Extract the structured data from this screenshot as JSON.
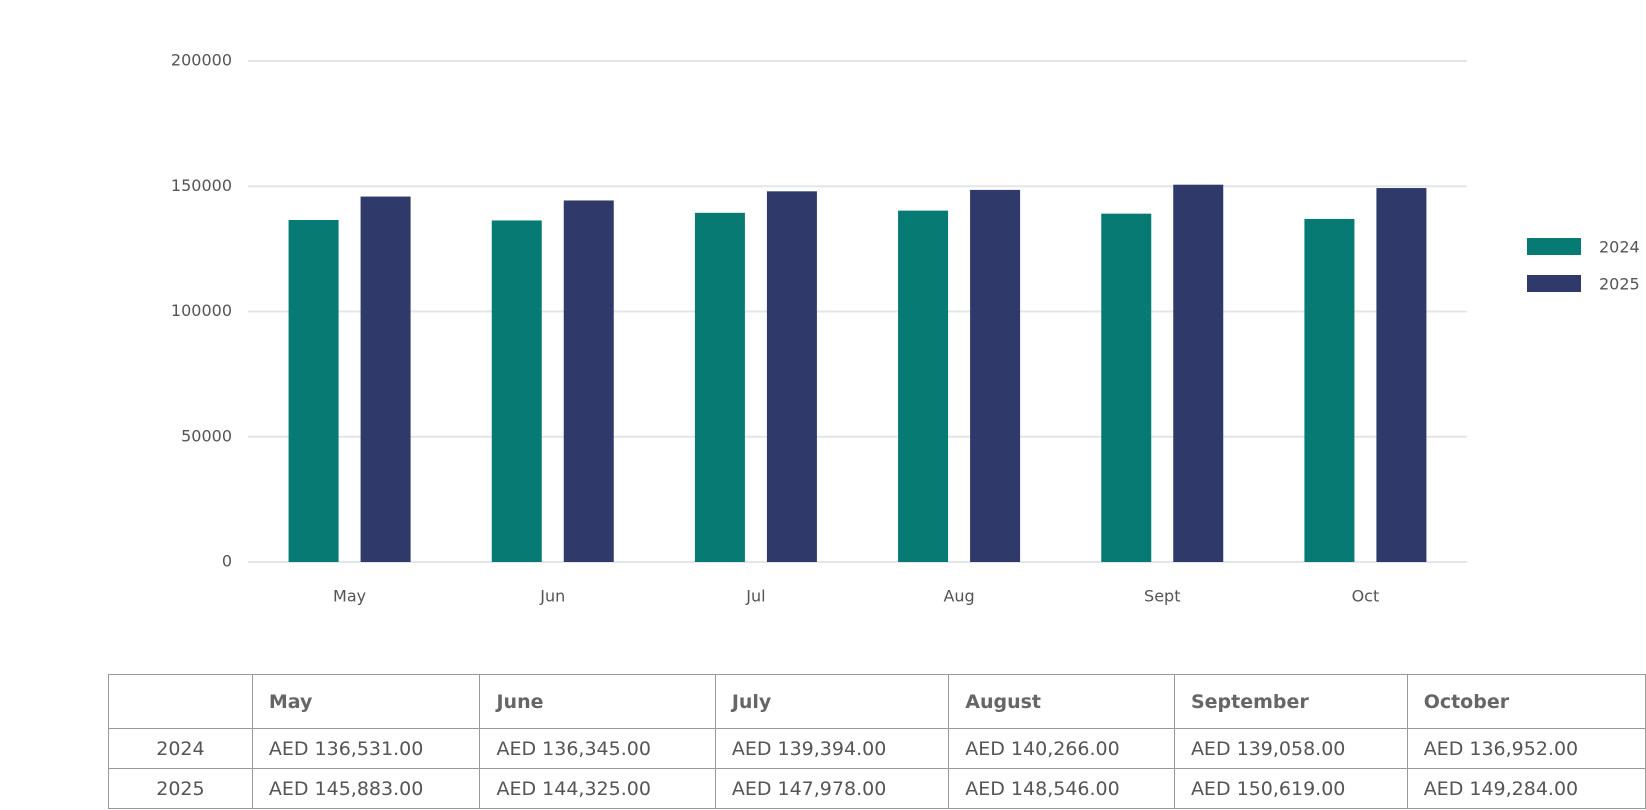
{
  "chart_data": {
    "type": "bar",
    "categories": [
      "May",
      "Jun",
      "Jul",
      "Aug",
      "Sept",
      "Oct"
    ],
    "series": [
      {
        "name": "2024",
        "color": "#077a74",
        "values": [
          136531,
          136345,
          139394,
          140266,
          139058,
          136952
        ]
      },
      {
        "name": "2025",
        "color": "#2f3a6b",
        "values": [
          145883,
          144325,
          147978,
          148546,
          150619,
          149284
        ]
      }
    ],
    "ylim": [
      0,
      200000
    ],
    "yticks": [
      0,
      50000,
      100000,
      150000,
      200000
    ],
    "grid": true,
    "legend": "right"
  },
  "table": {
    "columns": [
      "May",
      "June",
      "July",
      "August",
      "September",
      "October"
    ],
    "rows": [
      {
        "label": "2024",
        "cells": [
          "AED 136,531.00",
          "AED 136,345.00",
          "AED 139,394.00",
          "AED 140,266.00",
          "AED 139,058.00",
          "AED 136,952.00"
        ]
      },
      {
        "label": "2025",
        "cells": [
          "AED 145,883.00",
          "AED 144,325.00",
          "AED 147,978.00",
          "AED 148,546.00",
          "AED 150,619.00",
          "AED 149,284.00"
        ]
      }
    ]
  }
}
